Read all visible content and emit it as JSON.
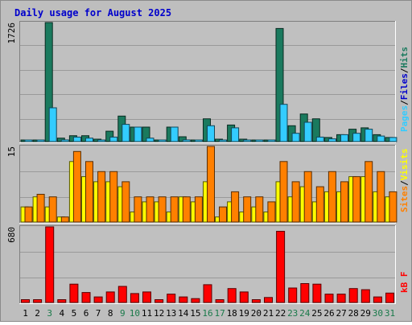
{
  "title": "Daily usage for August 2025",
  "colors": {
    "background": "#bebebe",
    "frame": "#ffffff",
    "title": "#0000cc",
    "grid": "#9a9a9a",
    "pages": "#33ccff",
    "files": "#1a7a5e",
    "hits": "#1a7a5e",
    "sites": "#ff8000",
    "visits": "#ffff00",
    "kbf": "#ff0000",
    "day_weekend": "#1a7a4a",
    "day_normal": "#000000"
  },
  "chart_data": [
    {
      "type": "bar",
      "panel": "top",
      "axis_max_label": "1726",
      "ylim": [
        0,
        1726
      ],
      "legend": [
        {
          "label": "Pages",
          "color": "#33ccff"
        },
        {
          "label": "/",
          "color": "#000000"
        },
        {
          "label": "Files",
          "color": "#0000cc"
        },
        {
          "label": "/",
          "color": "#000000"
        },
        {
          "label": "Hits",
          "color": "#1a7a5e"
        }
      ],
      "categories": [
        "1",
        "2",
        "3",
        "4",
        "5",
        "6",
        "7",
        "8",
        "9",
        "10",
        "11",
        "12",
        "13",
        "14",
        "15",
        "16",
        "17",
        "18",
        "19",
        "20",
        "21",
        "22",
        "23",
        "24",
        "25",
        "26",
        "27",
        "28",
        "29",
        "30",
        "31"
      ],
      "series": [
        {
          "name": "Hits",
          "values": [
            10,
            10,
            1726,
            50,
            85,
            85,
            35,
            150,
            370,
            210,
            210,
            10,
            210,
            70,
            10,
            330,
            35,
            240,
            35,
            10,
            10,
            1640,
            230,
            400,
            330,
            60,
            100,
            180,
            200,
            100,
            60
          ]
        },
        {
          "name": "Pages",
          "values": [
            5,
            5,
            490,
            25,
            65,
            50,
            20,
            65,
            250,
            210,
            50,
            5,
            210,
            25,
            5,
            230,
            20,
            200,
            20,
            5,
            5,
            540,
            120,
            280,
            65,
            40,
            100,
            120,
            180,
            80,
            60
          ]
        }
      ]
    },
    {
      "type": "bar",
      "panel": "middle",
      "axis_max_label": "15",
      "ylim": [
        0,
        15
      ],
      "legend": [
        {
          "label": "Sites",
          "color": "#ff8000"
        },
        {
          "label": "/",
          "color": "#000000"
        },
        {
          "label": "Visits",
          "color": "#ffff00"
        }
      ],
      "categories": [
        "1",
        "2",
        "3",
        "4",
        "5",
        "6",
        "7",
        "8",
        "9",
        "10",
        "11",
        "12",
        "13",
        "14",
        "15",
        "16",
        "17",
        "18",
        "19",
        "20",
        "21",
        "22",
        "23",
        "24",
        "25",
        "26",
        "27",
        "28",
        "29",
        "30",
        "31"
      ],
      "series": [
        {
          "name": "Visits",
          "values": [
            3,
            5,
            3,
            1,
            12,
            9,
            8,
            8,
            7,
            2,
            4,
            4,
            2,
            5,
            4,
            8,
            1,
            4,
            2,
            3,
            2,
            8,
            5,
            7,
            4,
            6,
            6,
            9,
            9,
            6,
            5
          ]
        },
        {
          "name": "Sites",
          "values": [
            3,
            5.5,
            5,
            1,
            14,
            12,
            10,
            10,
            8,
            5,
            5,
            5,
            5,
            5,
            5,
            15,
            3,
            6,
            5,
            5,
            4,
            12,
            8,
            10,
            7,
            10,
            8,
            9,
            12,
            10,
            6
          ]
        }
      ]
    },
    {
      "type": "bar",
      "panel": "bottom",
      "axis_max_label": "680",
      "ylim": [
        0,
        680
      ],
      "legend": [
        {
          "label": "kB F",
          "color": "#ff0000"
        }
      ],
      "categories": [
        "1",
        "2",
        "3",
        "4",
        "5",
        "6",
        "7",
        "8",
        "9",
        "10",
        "11",
        "12",
        "13",
        "14",
        "15",
        "16",
        "17",
        "18",
        "19",
        "20",
        "21",
        "22",
        "23",
        "24",
        "25",
        "26",
        "27",
        "28",
        "29",
        "30",
        "31"
      ],
      "series": [
        {
          "name": "kB F",
          "values": [
            25,
            25,
            680,
            25,
            165,
            90,
            50,
            95,
            145,
            80,
            95,
            25,
            75,
            50,
            35,
            160,
            25,
            125,
            95,
            25,
            45,
            640,
            130,
            170,
            165,
            75,
            75,
            125,
            115,
            50,
            85
          ]
        }
      ]
    }
  ],
  "day_colors": [
    "#000000",
    "#000000",
    "#1a7a4a",
    "#000000",
    "#000000",
    "#000000",
    "#000000",
    "#000000",
    "#1a7a4a",
    "#1a7a4a",
    "#000000",
    "#000000",
    "#000000",
    "#000000",
    "#000000",
    "#1a7a4a",
    "#1a7a4a",
    "#000000",
    "#000000",
    "#000000",
    "#000000",
    "#000000",
    "#1a7a4a",
    "#1a7a4a",
    "#000000",
    "#000000",
    "#000000",
    "#000000",
    "#000000",
    "#1a7a4a",
    "#1a7a4a"
  ]
}
